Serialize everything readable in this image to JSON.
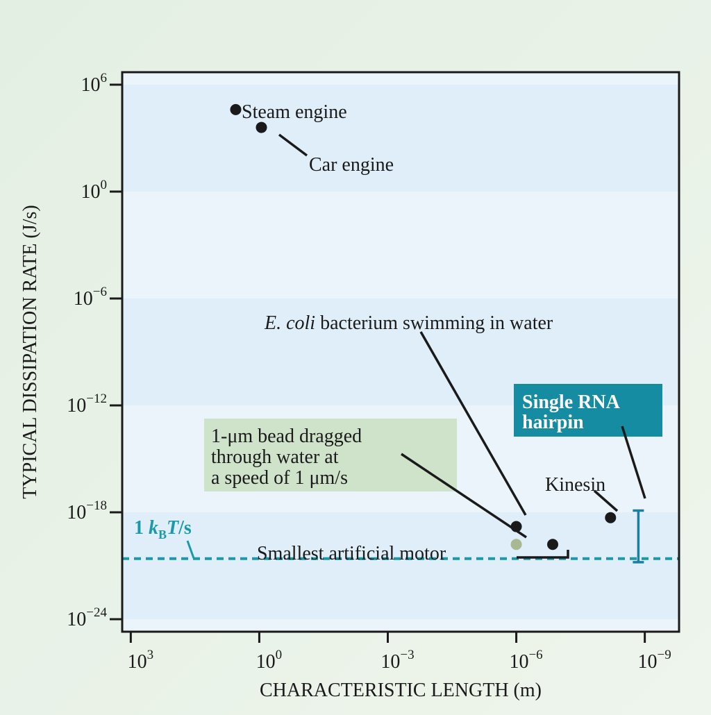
{
  "chart_data": {
    "type": "scatter",
    "title": "",
    "xlabel": "CHARACTERISTIC LENGTH (m)",
    "ylabel": "TYPICAL DISSIPATION RATE (J/s)",
    "x_scale": "log10, reversed",
    "y_scale": "log10",
    "xlim_log10": [
      3.2,
      -9.8
    ],
    "ylim_log10": [
      -24.7,
      6.7
    ],
    "x_ticks": [
      {
        "base": "10",
        "exp": "3",
        "log10": 3
      },
      {
        "base": "10",
        "exp": "0",
        "log10": 0
      },
      {
        "base": "10",
        "exp": "−3",
        "log10": -3
      },
      {
        "base": "10",
        "exp": "−6",
        "log10": -6
      },
      {
        "base": "10",
        "exp": "−9",
        "log10": -9
      }
    ],
    "y_ticks": [
      {
        "base": "10",
        "exp": "6",
        "log10": 6
      },
      {
        "base": "10",
        "exp": "0",
        "log10": 0
      },
      {
        "base": "10",
        "exp": "−6",
        "log10": -6
      },
      {
        "base": "10",
        "exp": "−12",
        "log10": -12
      },
      {
        "base": "10",
        "exp": "−18",
        "log10": -18
      },
      {
        "base": "10",
        "exp": "−24",
        "log10": -24
      }
    ],
    "points": [
      {
        "id": "steam-engine",
        "x_log10": 0.55,
        "y_log10": 4.6,
        "color": "#1a1a1a"
      },
      {
        "id": "car-engine",
        "x_log10": -0.05,
        "y_log10": 3.6,
        "color": "#1a1a1a"
      },
      {
        "id": "e-coli",
        "x_log10": -6.0,
        "y_log10": -18.8,
        "color": "#1a1a1a"
      },
      {
        "id": "bead",
        "x_log10": -6.0,
        "y_log10": -19.8,
        "color": "#a8b890"
      },
      {
        "id": "artificial-motor",
        "x_log10": -6.85,
        "y_log10": -19.8,
        "color": "#1a1a1a"
      },
      {
        "id": "kinesin",
        "x_log10": -8.2,
        "y_log10": -18.3,
        "color": "#1a1a1a"
      }
    ],
    "rna_range": {
      "x_log10": -8.85,
      "y_low_log10": -20.8,
      "y_high_log10": -17.9,
      "color": "#1d7fa0"
    },
    "kbt_line": {
      "y_log10": -20.6,
      "color": "#1a9aa8",
      "label_left": "1 ",
      "k": "k",
      "sub": "B",
      "T": "T",
      "tail": "/s"
    },
    "labels": {
      "steam": "Steam engine",
      "car": "Car engine",
      "ecoli_italic": "E. coli",
      "ecoli_rest": " bacterium swimming in water",
      "bead_lines": [
        "1-μm bead dragged",
        "through water at",
        "a speed of 1 μm/s"
      ],
      "motor": "Smallest artificial motor",
      "kinesin": "Kinesin",
      "rna_lines": [
        "Single RNA",
        "hairpin"
      ]
    },
    "colors": {
      "band_light": "#ebf4fa",
      "band_dark": "#dfeef8",
      "bead_box": "#cfe3cb",
      "rna_box": "#168ca3",
      "frame": "#1a1a1a"
    }
  }
}
